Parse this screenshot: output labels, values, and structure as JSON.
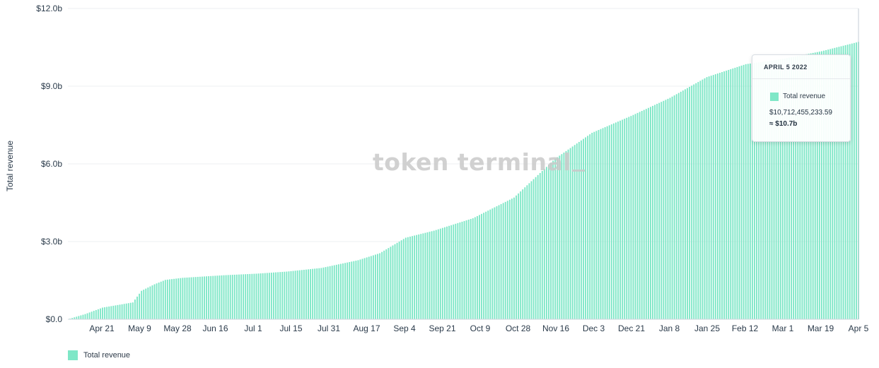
{
  "chart_data": {
    "type": "bar",
    "ylabel": "Total revenue",
    "y_ticks": [
      "$0.0",
      "$3.0b",
      "$6.0b",
      "$9.0b",
      "$12.0b"
    ],
    "ylim": [
      0,
      12
    ],
    "grid": true,
    "legend_position": "bottom-left",
    "x_ticks": [
      "Apr 21",
      "May 9",
      "May 28",
      "Jun 16",
      "Jul 1",
      "Jul 15",
      "Jul 31",
      "Aug 17",
      "Sep 4",
      "Sep 21",
      "Oct 9",
      "Oct 28",
      "Nov 16",
      "Dec 3",
      "Dec 21",
      "Jan 8",
      "Jan 25",
      "Feb 12",
      "Mar 1",
      "Mar 19",
      "Apr 5"
    ],
    "x_range": [
      "2021-04-05",
      "2022-04-05"
    ],
    "series": [
      {
        "name": "Total revenue",
        "color": "#7fe7c7",
        "unit": "billion USD",
        "points": [
          [
            "2021-04-05",
            0.0
          ],
          [
            "2021-04-13",
            0.2
          ],
          [
            "2021-04-21",
            0.45
          ],
          [
            "2021-05-05",
            0.65
          ],
          [
            "2021-05-09",
            1.1
          ],
          [
            "2021-05-15",
            1.35
          ],
          [
            "2021-05-20",
            1.52
          ],
          [
            "2021-05-28",
            1.6
          ],
          [
            "2021-06-16",
            1.7
          ],
          [
            "2021-07-01",
            1.76
          ],
          [
            "2021-07-15",
            1.84
          ],
          [
            "2021-07-31",
            1.98
          ],
          [
            "2021-08-17",
            2.28
          ],
          [
            "2021-08-27",
            2.55
          ],
          [
            "2021-09-04",
            2.95
          ],
          [
            "2021-09-08",
            3.15
          ],
          [
            "2021-09-21",
            3.42
          ],
          [
            "2021-10-09",
            3.9
          ],
          [
            "2021-10-28",
            4.7
          ],
          [
            "2021-11-16",
            6.2
          ],
          [
            "2021-12-03",
            7.2
          ],
          [
            "2021-12-21",
            7.85
          ],
          [
            "2022-01-08",
            8.55
          ],
          [
            "2022-01-25",
            9.35
          ],
          [
            "2022-02-12",
            9.85
          ],
          [
            "2022-03-01",
            10.05
          ],
          [
            "2022-03-19",
            10.35
          ],
          [
            "2022-04-05",
            10.71
          ]
        ]
      }
    ]
  },
  "watermark": {
    "text": "token terminal"
  },
  "tooltip": {
    "date": "APRIL 5 2022",
    "series_name": "Total revenue",
    "value": "$10,712,455,233.59",
    "approx": "≈ $10.7b"
  },
  "legend": {
    "items": [
      {
        "label": "Total revenue"
      }
    ]
  }
}
